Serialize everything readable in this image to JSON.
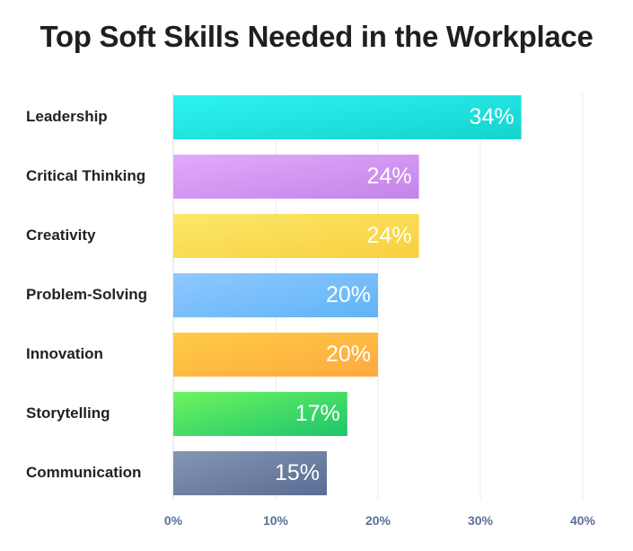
{
  "chart_data": {
    "type": "bar",
    "orientation": "horizontal",
    "title": "Top Soft Skills Needed in the Workplace",
    "categories": [
      "Leadership",
      "Critical Thinking",
      "Creativity",
      "Problem-Solving",
      "Innovation",
      "Storytelling",
      "Communication"
    ],
    "values": [
      34,
      24,
      24,
      20,
      20,
      17,
      15
    ],
    "value_labels": [
      "34%",
      "24%",
      "24%",
      "20%",
      "20%",
      "17%",
      "15%"
    ],
    "xlim": [
      0,
      40
    ],
    "xticks": [
      0,
      10,
      20,
      30,
      40
    ],
    "xtick_labels": [
      "0%",
      "10%",
      "20%",
      "30%",
      "40%"
    ],
    "grid": "vertical",
    "bar_colors": [
      [
        "#2ff3f0",
        "#14d3cf"
      ],
      [
        "#e3a9fb",
        "#c484e8"
      ],
      [
        "#fbe86a",
        "#f8cf3e"
      ],
      [
        "#90c8fd",
        "#5fb4f8"
      ],
      [
        "#ffcc45",
        "#fea93f"
      ],
      [
        "#6ef45f",
        "#1cc56c"
      ],
      [
        "#8496b4",
        "#5a6d93"
      ]
    ]
  }
}
